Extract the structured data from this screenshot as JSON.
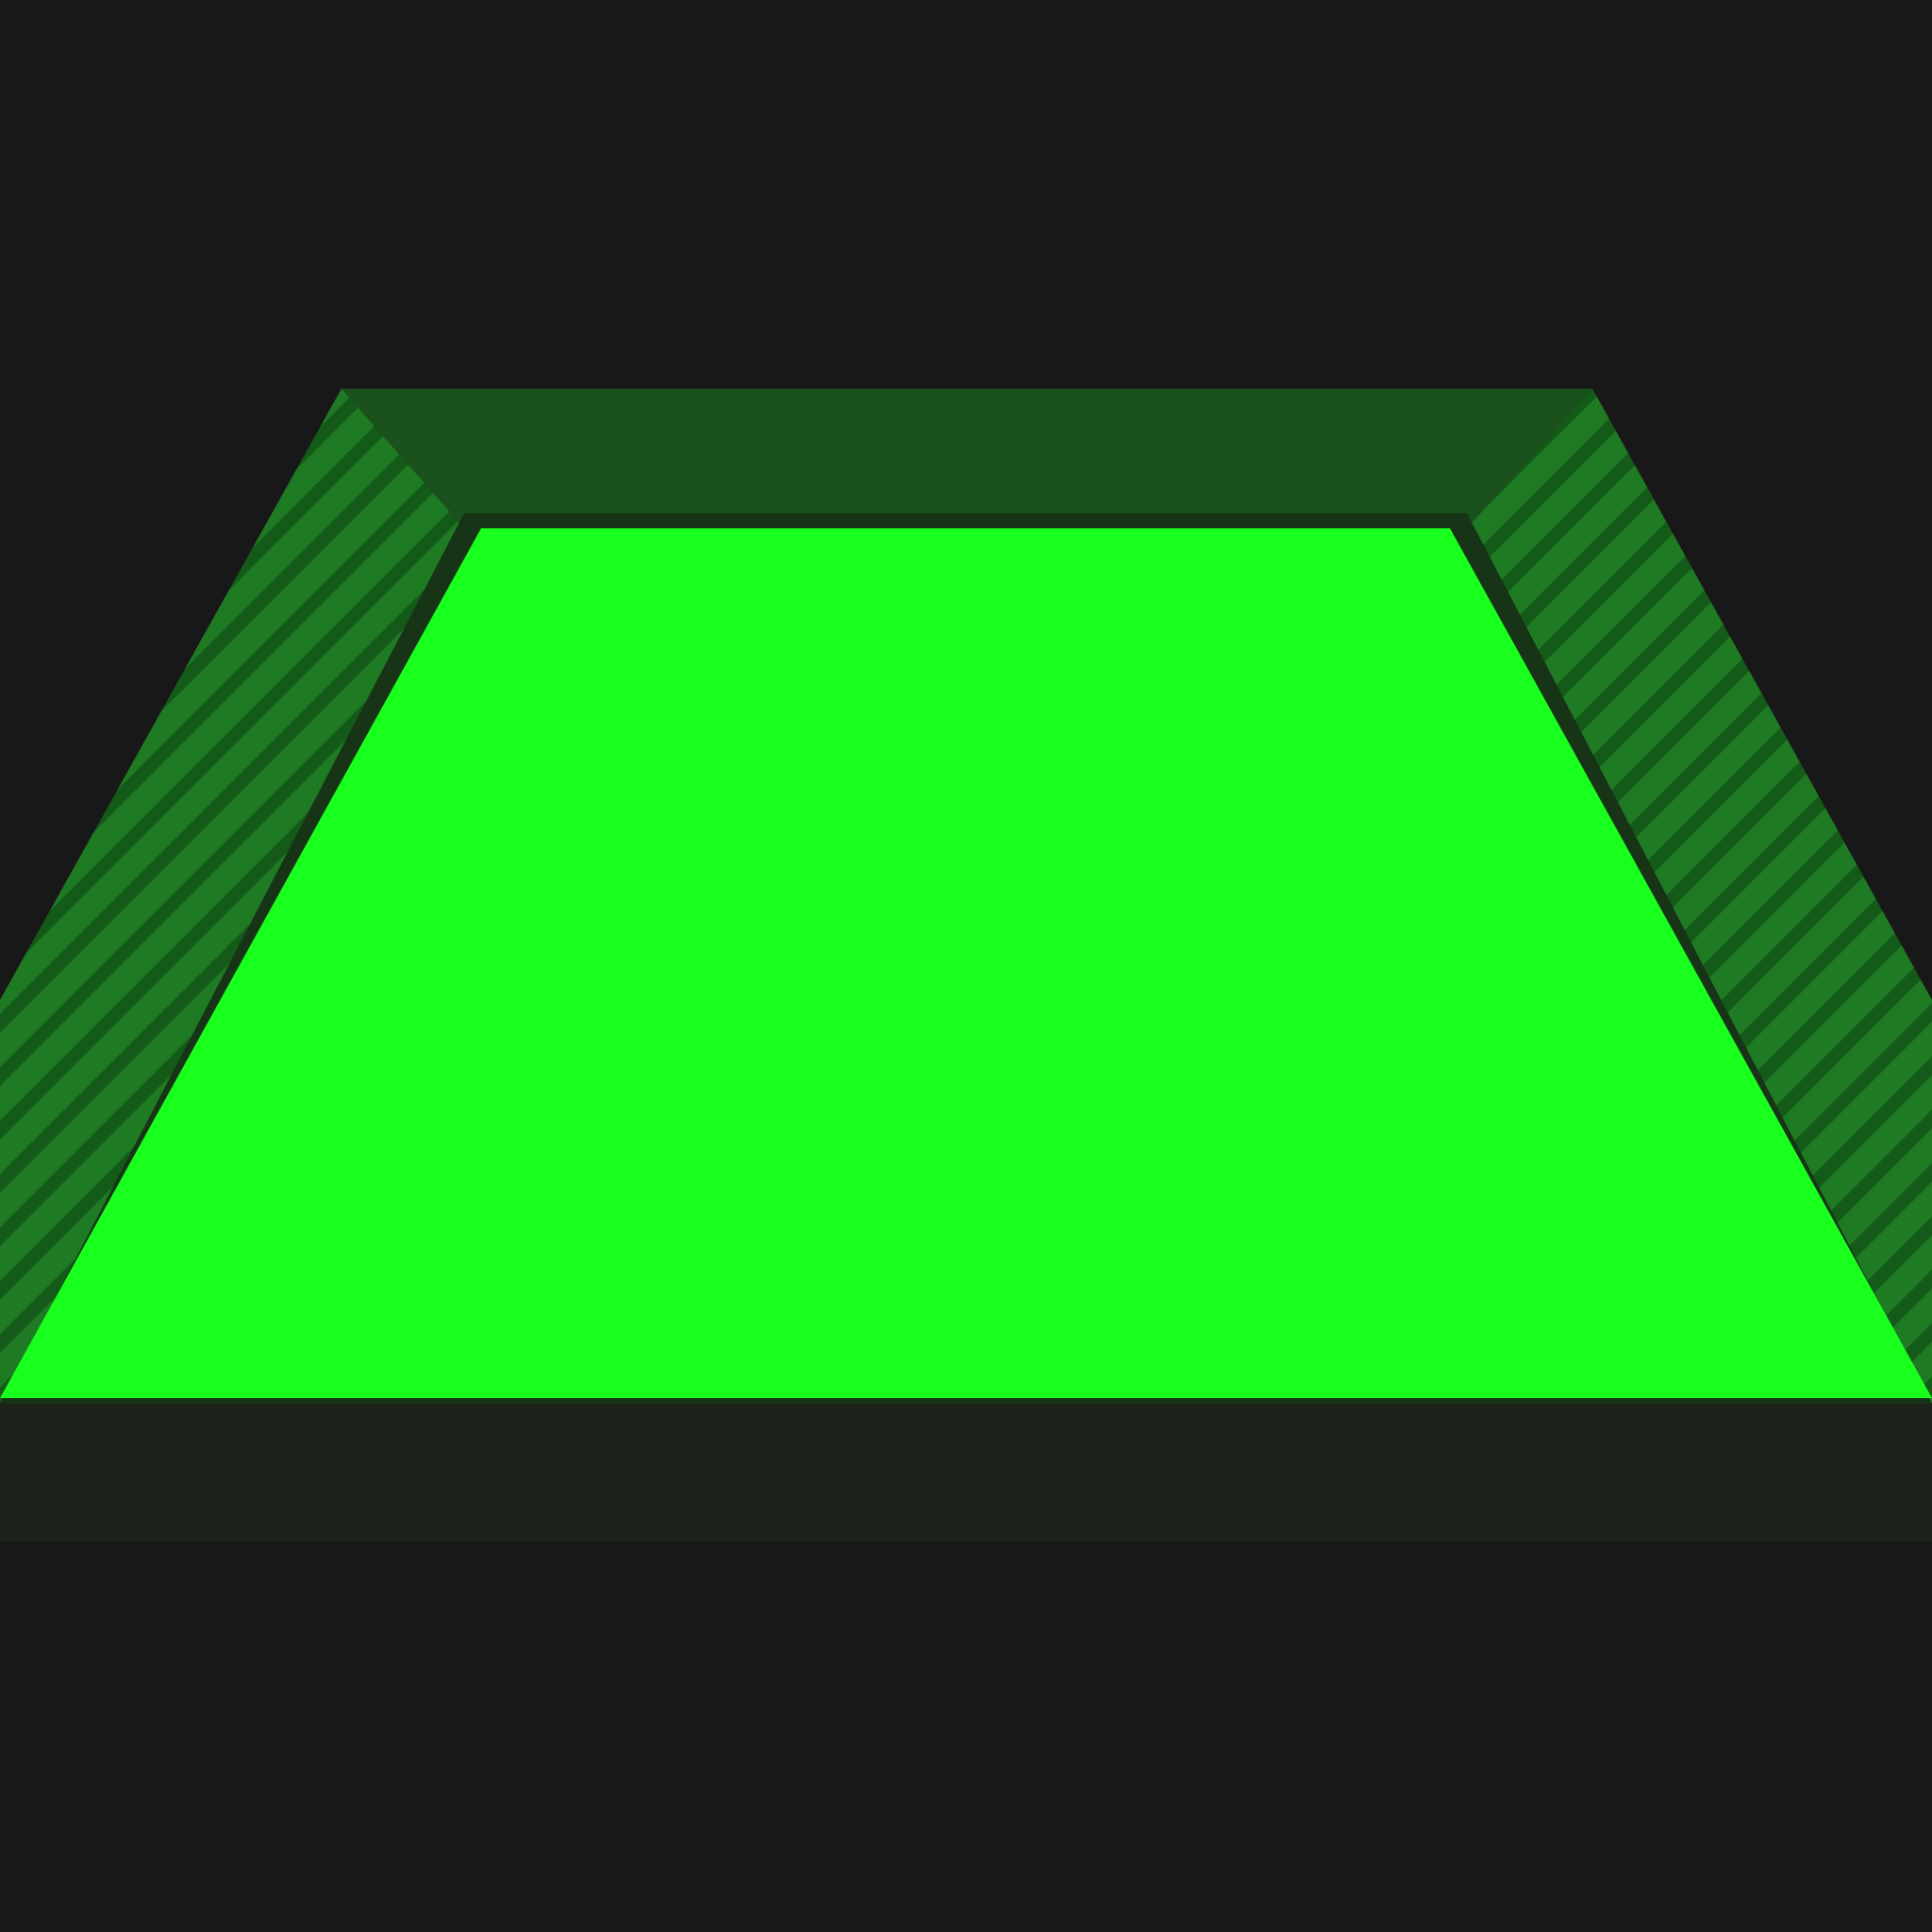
{
  "scene": {
    "icon": "trapezoid-button-icon",
    "colors": {
      "background": "#181818",
      "face": "#19ff1e",
      "top_bevel": "#1b511c",
      "side_bevel": "#1f7a24",
      "side_stripe": "#145a18",
      "bottom_bevel": "#1a2219",
      "outline": "#173417"
    }
  }
}
